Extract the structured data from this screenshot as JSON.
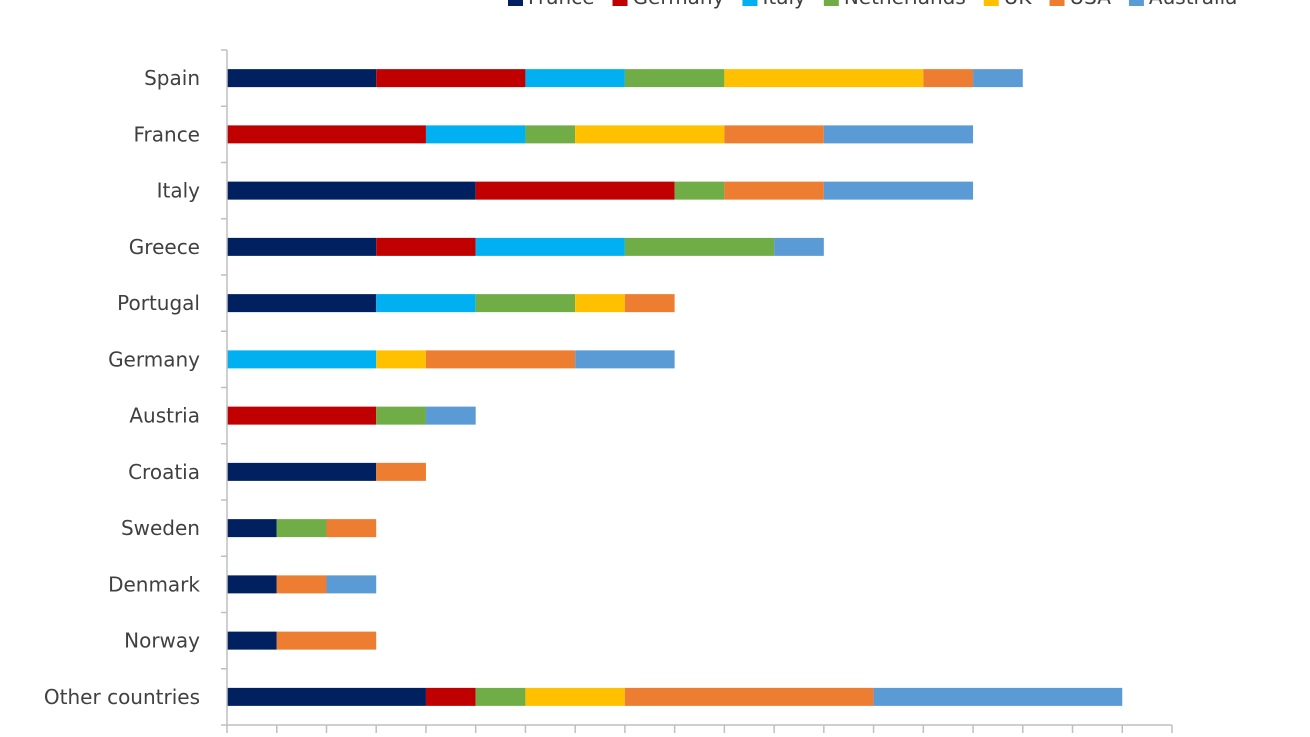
{
  "chart_data": {
    "type": "bar",
    "orientation": "horizontal",
    "stacked": true,
    "title": "",
    "xlabel": "",
    "ylabel": "",
    "xlim": [
      0,
      19
    ],
    "grid": false,
    "legend_position": "top-right",
    "categories": [
      "Spain",
      "France",
      "Italy",
      "Greece",
      "Portugal",
      "Germany",
      "Austria",
      "Croatia",
      "Sweden",
      "Denmark",
      "Norway",
      "Other countries"
    ],
    "series": [
      {
        "name": "France",
        "color": "#002060",
        "values": [
          3,
          0,
          5,
          3,
          3,
          0,
          0,
          3,
          1,
          1,
          1,
          4
        ]
      },
      {
        "name": "Germany",
        "color": "#C00000",
        "values": [
          3,
          4,
          4,
          2,
          0,
          0,
          3,
          0,
          0,
          0,
          0,
          1
        ]
      },
      {
        "name": "Italy",
        "color": "#00B0F0",
        "values": [
          2,
          2,
          0,
          3,
          2,
          3,
          0,
          0,
          0,
          0,
          0,
          0
        ]
      },
      {
        "name": "Netherlands",
        "color": "#70AD47",
        "values": [
          2,
          1,
          1,
          3,
          2,
          0,
          1,
          0,
          1,
          0,
          0,
          1
        ]
      },
      {
        "name": "UK",
        "color": "#FFC000",
        "values": [
          4,
          3,
          0,
          0,
          1,
          1,
          0,
          0,
          0,
          0,
          0,
          2
        ]
      },
      {
        "name": "USA",
        "color": "#ED7D31",
        "values": [
          1,
          2,
          2,
          0,
          1,
          3,
          0,
          1,
          1,
          1,
          2,
          5
        ]
      },
      {
        "name": "Australia",
        "color": "#5B9BD5",
        "values": [
          1,
          3,
          3,
          1,
          0,
          2,
          1,
          0,
          0,
          1,
          0,
          5
        ]
      }
    ]
  }
}
